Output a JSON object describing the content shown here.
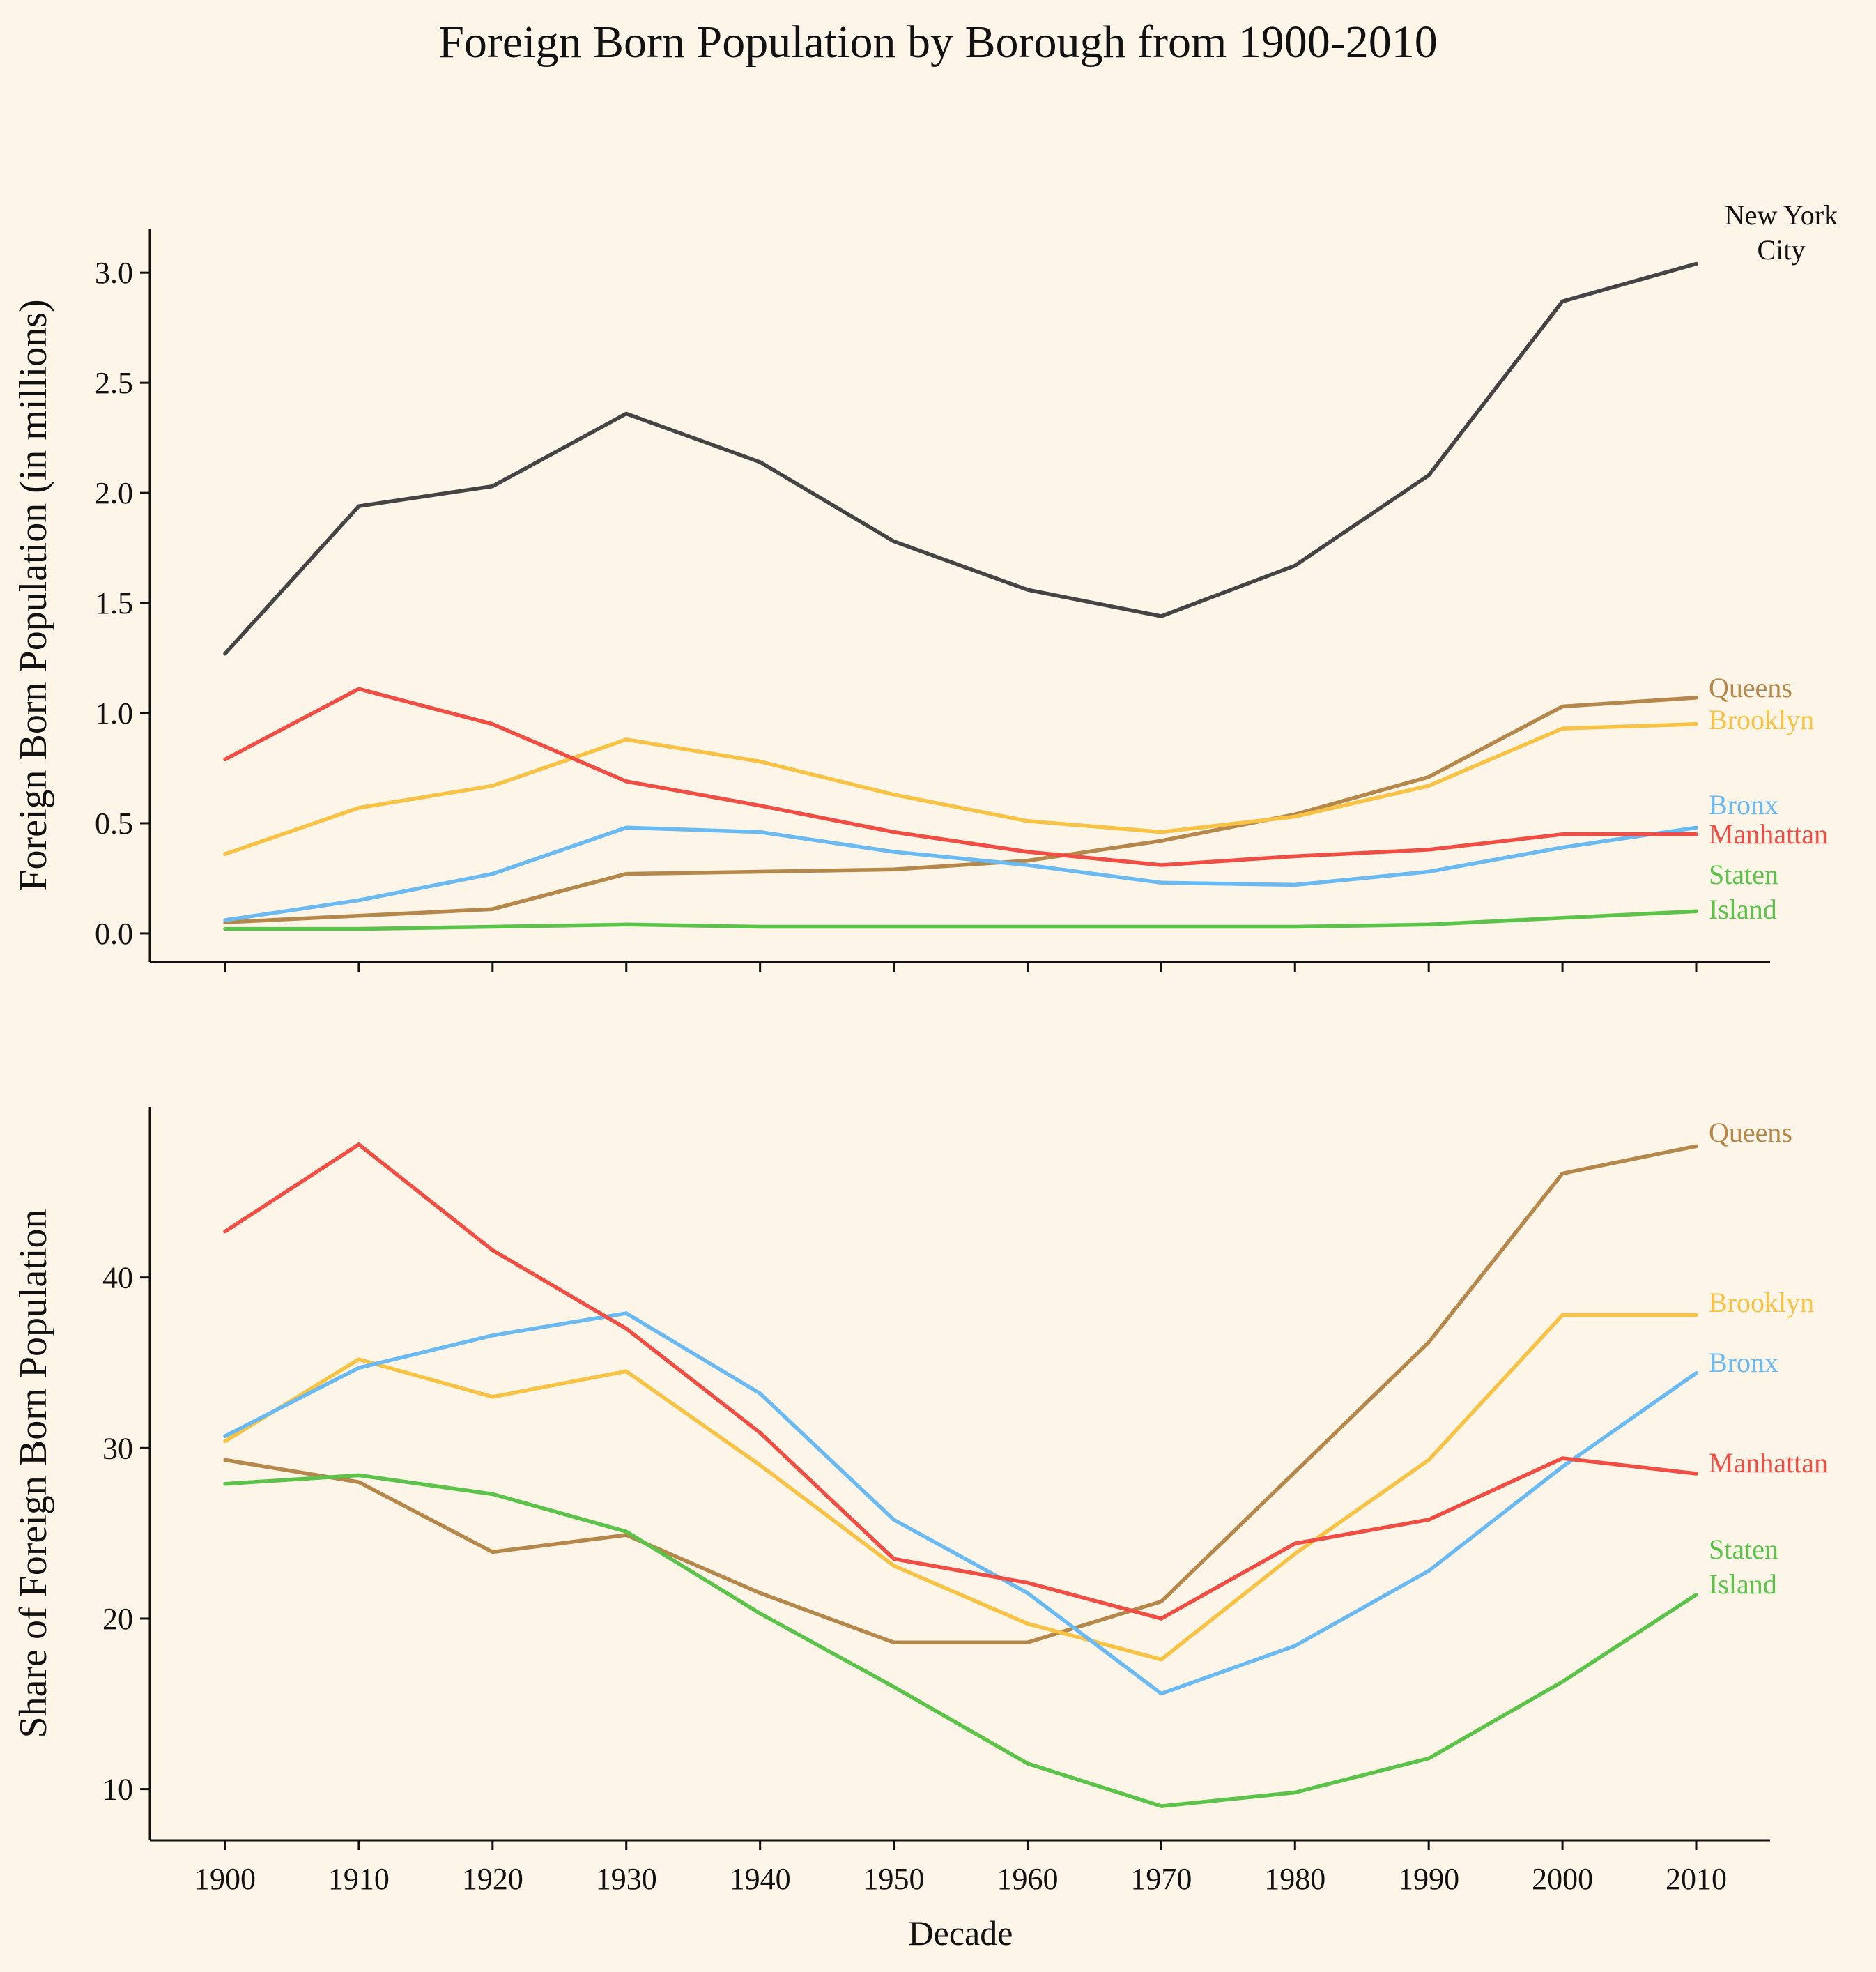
{
  "title": "Foreign Born Population by Borough from 1900-2010",
  "chart_data": [
    {
      "type": "line",
      "title": "",
      "ylabel": "Foreign Born Population (in millions)",
      "xlabel": "",
      "x": [
        1900,
        1910,
        1920,
        1930,
        1940,
        1950,
        1960,
        1970,
        1980,
        1990,
        2000,
        2010
      ],
      "ylim": [
        -0.13,
        3.2
      ],
      "yticks": [
        0.0,
        0.5,
        1.0,
        1.5,
        2.0,
        2.5,
        3.0
      ],
      "ytick_labels": [
        "0.0",
        "0.5",
        "1.0",
        "1.5",
        "2.0",
        "2.5",
        "3.0"
      ],
      "grid": false,
      "series": [
        {
          "name": "New York City",
          "label_lines": [
            "New York",
            "City"
          ],
          "color": "#444444",
          "values": [
            1.27,
            1.94,
            2.03,
            2.36,
            2.14,
            1.78,
            1.56,
            1.44,
            1.67,
            2.08,
            2.87,
            3.04
          ]
        },
        {
          "name": "Queens",
          "label_lines": [
            "Queens"
          ],
          "color": "#b5874a",
          "values": [
            0.05,
            0.08,
            0.11,
            0.27,
            0.28,
            0.29,
            0.33,
            0.42,
            0.54,
            0.71,
            1.03,
            1.07
          ]
        },
        {
          "name": "Brooklyn",
          "label_lines": [
            "Brooklyn"
          ],
          "color": "#f8c245",
          "values": [
            0.36,
            0.57,
            0.67,
            0.88,
            0.78,
            0.63,
            0.51,
            0.46,
            0.53,
            0.67,
            0.93,
            0.95
          ]
        },
        {
          "name": "Bronx",
          "label_lines": [
            "Bronx"
          ],
          "color": "#6ab9f0",
          "values": [
            0.06,
            0.15,
            0.27,
            0.48,
            0.46,
            0.37,
            0.31,
            0.23,
            0.22,
            0.28,
            0.39,
            0.48
          ]
        },
        {
          "name": "Manhattan",
          "label_lines": [
            "Manhattan"
          ],
          "color": "#f04d44",
          "values": [
            0.79,
            1.11,
            0.95,
            0.69,
            0.58,
            0.46,
            0.37,
            0.31,
            0.35,
            0.38,
            0.45,
            0.45
          ]
        },
        {
          "name": "Staten Island",
          "label_lines": [
            "Staten",
            "Island"
          ],
          "color": "#5bc24a",
          "values": [
            0.02,
            0.02,
            0.03,
            0.04,
            0.03,
            0.03,
            0.03,
            0.03,
            0.03,
            0.04,
            0.07,
            0.1
          ]
        }
      ]
    },
    {
      "type": "line",
      "title": "",
      "ylabel": "Share of Foreign Born Population",
      "xlabel": "Decade",
      "x": [
        1900,
        1910,
        1920,
        1930,
        1940,
        1950,
        1960,
        1970,
        1980,
        1990,
        2000,
        2010
      ],
      "xtick_labels": [
        "1900",
        "1910",
        "1920",
        "1930",
        "1940",
        "1950",
        "1960",
        "1970",
        "1980",
        "1990",
        "2000",
        "2010"
      ],
      "ylim": [
        7,
        50
      ],
      "yticks": [
        10,
        20,
        30,
        40
      ],
      "ytick_labels": [
        "10",
        "20",
        "30",
        "40"
      ],
      "grid": false,
      "series": [
        {
          "name": "Queens",
          "label_lines": [
            "Queens"
          ],
          "color": "#b5874a",
          "values": [
            29.3,
            28.0,
            23.9,
            24.9,
            21.5,
            18.6,
            18.6,
            21.0,
            28.6,
            36.2,
            46.1,
            47.7
          ]
        },
        {
          "name": "Brooklyn",
          "label_lines": [
            "Brooklyn"
          ],
          "color": "#f8c245",
          "values": [
            30.4,
            35.2,
            33.0,
            34.5,
            29.0,
            23.1,
            19.7,
            17.6,
            23.8,
            29.3,
            37.8,
            37.8
          ]
        },
        {
          "name": "Bronx",
          "label_lines": [
            "Bronx"
          ],
          "color": "#6ab9f0",
          "values": [
            30.7,
            34.7,
            36.6,
            37.9,
            33.2,
            25.8,
            21.5,
            15.6,
            18.4,
            22.8,
            28.9,
            34.4
          ]
        },
        {
          "name": "Manhattan",
          "label_lines": [
            "Manhattan"
          ],
          "color": "#f04d44",
          "values": [
            42.7,
            47.8,
            41.6,
            37.0,
            30.9,
            23.5,
            22.1,
            20.0,
            24.4,
            25.8,
            29.4,
            28.5
          ]
        },
        {
          "name": "Staten Island",
          "label_lines": [
            "Staten",
            "Island"
          ],
          "color": "#5bc24a",
          "values": [
            27.9,
            28.4,
            27.3,
            25.1,
            20.3,
            16.0,
            11.5,
            9.0,
            9.8,
            11.8,
            16.3,
            21.4
          ]
        }
      ]
    }
  ]
}
